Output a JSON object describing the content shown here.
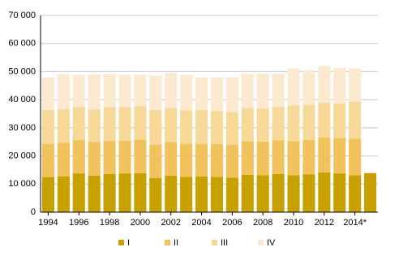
{
  "chart_data": {
    "type": "stacked_bar",
    "categories": [
      "1994",
      null,
      "1996",
      null,
      "1998",
      null,
      "2000",
      null,
      "2002",
      null,
      "2004",
      null,
      "2006",
      null,
      "2008",
      null,
      "2010",
      null,
      "2012",
      null,
      "2014*",
      null
    ],
    "series": [
      {
        "name": "I",
        "color": "#c8a000",
        "values": [
          12500,
          12700,
          13800,
          13000,
          13600,
          13800,
          13900,
          12200,
          13000,
          12600,
          12700,
          12600,
          12300,
          13300,
          13100,
          13600,
          13100,
          13400,
          14100,
          13800,
          13100,
          13900
        ]
      },
      {
        "name": "II",
        "color": "#f2c25c",
        "values": [
          11800,
          12000,
          11900,
          12000,
          11800,
          11600,
          11900,
          11900,
          12000,
          11800,
          11700,
          11600,
          11700,
          11900,
          12000,
          12000,
          12200,
          12300,
          12400,
          12600,
          13000,
          null
        ]
      },
      {
        "name": "III",
        "color": "#f7d99a",
        "values": [
          12000,
          12000,
          11800,
          11600,
          11900,
          12000,
          11900,
          12200,
          12100,
          11800,
          11900,
          11800,
          11600,
          11800,
          11800,
          11900,
          12700,
          12500,
          12400,
          12300,
          13200,
          null
        ]
      },
      {
        "name": "IV",
        "color": "#fbead0",
        "values": [
          11700,
          12300,
          11300,
          12400,
          11900,
          11500,
          11200,
          12200,
          12500,
          12600,
          11600,
          12000,
          12400,
          12200,
          12400,
          11800,
          13100,
          12300,
          13100,
          12600,
          11800,
          null
        ]
      }
    ],
    "ylim": [
      0,
      70000
    ],
    "yticks": [
      0,
      {
        "value": 10000,
        "label": "10 000"
      },
      {
        "value": 20000,
        "label": "20 000"
      },
      {
        "value": 30000,
        "label": "30 000"
      },
      {
        "value": 40000,
        "label": "40 000"
      },
      {
        "value": 50000,
        "label": "50 000"
      },
      {
        "value": 60000,
        "label": "60 000"
      },
      {
        "value": 70000,
        "label": "70 000"
      }
    ],
    "grid": true
  }
}
